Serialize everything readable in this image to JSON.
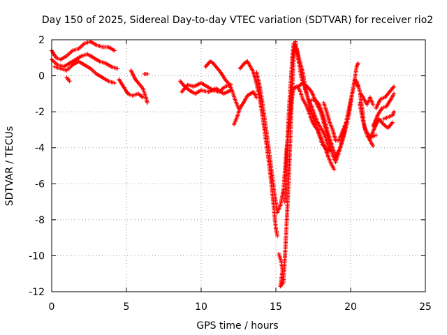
{
  "chart_data": {
    "type": "scatter",
    "title": "Day 150 of 2025, Sidereal Day-to-day VTEC variation (SDTVAR) for receiver rio2",
    "xlabel": "GPS time / hours",
    "ylabel": "SDTVAR / TECUs",
    "xlim": [
      0,
      25
    ],
    "ylim": [
      -12,
      2
    ],
    "x_ticks": [
      0,
      5,
      10,
      15,
      20,
      25
    ],
    "x_tick_labels": [
      "0",
      "5",
      "10",
      "15",
      "20",
      "25"
    ],
    "y_ticks": [
      -12,
      -10,
      -8,
      -6,
      -4,
      -2,
      0,
      2
    ],
    "y_tick_labels": [
      "-12",
      "-10",
      "-8",
      "-6",
      "-4",
      "-2",
      "0",
      "2"
    ],
    "grid": true,
    "marker": "+",
    "color": "#ff0000",
    "series": [
      {
        "segments": [
          [
            [
              0.0,
              1.4
            ],
            [
              0.3,
              1.0
            ],
            [
              0.6,
              0.9
            ],
            [
              1.0,
              1.1
            ],
            [
              1.4,
              1.4
            ],
            [
              1.8,
              1.5
            ],
            [
              2.2,
              1.8
            ],
            [
              2.6,
              1.9
            ],
            [
              3.0,
              1.7
            ],
            [
              3.4,
              1.6
            ],
            [
              3.8,
              1.6
            ],
            [
              4.2,
              1.4
            ]
          ],
          [
            [
              0.0,
              0.9
            ],
            [
              0.4,
              0.6
            ],
            [
              0.8,
              0.5
            ],
            [
              1.2,
              0.7
            ],
            [
              1.6,
              0.9
            ],
            [
              2.0,
              1.1
            ],
            [
              2.4,
              1.2
            ],
            [
              2.8,
              1.0
            ],
            [
              3.2,
              0.8
            ],
            [
              3.6,
              0.7
            ],
            [
              4.0,
              0.5
            ],
            [
              4.4,
              0.4
            ]
          ],
          [
            [
              0.2,
              0.5
            ],
            [
              0.6,
              0.4
            ],
            [
              1.0,
              0.3
            ],
            [
              1.4,
              0.6
            ],
            [
              1.8,
              0.8
            ],
            [
              2.2,
              0.6
            ],
            [
              2.6,
              0.4
            ],
            [
              3.0,
              0.1
            ],
            [
              3.4,
              -0.1
            ],
            [
              3.8,
              -0.3
            ],
            [
              4.2,
              -0.4
            ]
          ],
          [
            [
              1.0,
              -0.1
            ],
            [
              1.2,
              -0.3
            ]
          ],
          [
            [
              4.5,
              -0.2
            ],
            [
              4.8,
              -0.6
            ],
            [
              5.1,
              -1.0
            ],
            [
              5.4,
              -1.1
            ],
            [
              5.8,
              -1.0
            ],
            [
              6.1,
              -1.2
            ]
          ],
          [
            [
              5.3,
              0.3
            ],
            [
              5.6,
              -0.2
            ],
            [
              5.9,
              -0.5
            ],
            [
              6.1,
              -0.7
            ],
            [
              6.3,
              -1.2
            ],
            [
              6.4,
              -1.5
            ]
          ],
          [
            [
              6.2,
              0.1
            ],
            [
              6.4,
              0.1
            ]
          ],
          [
            [
              8.6,
              -0.3
            ],
            [
              8.9,
              -0.6
            ],
            [
              9.2,
              -0.8
            ],
            [
              9.6,
              -1.0
            ],
            [
              10.0,
              -0.8
            ],
            [
              10.5,
              -0.9
            ],
            [
              11.0,
              -0.7
            ],
            [
              11.5,
              -1.0
            ],
            [
              12.0,
              -0.8
            ]
          ],
          [
            [
              8.7,
              -0.9
            ],
            [
              9.1,
              -0.5
            ],
            [
              9.5,
              -0.6
            ],
            [
              10.0,
              -0.4
            ],
            [
              10.4,
              -0.6
            ],
            [
              10.8,
              -0.8
            ],
            [
              11.2,
              -0.9
            ],
            [
              11.6,
              -0.6
            ],
            [
              12.0,
              -0.5
            ]
          ],
          [
            [
              10.3,
              0.5
            ],
            [
              10.6,
              0.8
            ],
            [
              10.8,
              0.7
            ],
            [
              11.1,
              0.4
            ],
            [
              11.3,
              0.2
            ],
            [
              11.6,
              -0.2
            ],
            [
              11.9,
              -0.5
            ],
            [
              12.1,
              -0.9
            ],
            [
              12.3,
              -1.4
            ],
            [
              12.5,
              -1.8
            ]
          ],
          [
            [
              12.2,
              -2.7
            ],
            [
              12.4,
              -2.3
            ],
            [
              12.6,
              -1.8
            ],
            [
              12.9,
              -1.4
            ],
            [
              13.1,
              -1.1
            ],
            [
              13.3,
              -1.0
            ],
            [
              13.5,
              -0.9
            ],
            [
              13.7,
              -1.2
            ]
          ],
          [
            [
              12.6,
              0.4
            ],
            [
              12.9,
              0.7
            ],
            [
              13.1,
              0.8
            ],
            [
              13.3,
              0.5
            ],
            [
              13.5,
              0.2
            ],
            [
              13.7,
              -0.4
            ],
            [
              13.9,
              -1.2
            ],
            [
              14.1,
              -2.2
            ],
            [
              14.3,
              -3.4
            ],
            [
              14.5,
              -4.6
            ],
            [
              14.7,
              -6.0
            ],
            [
              14.9,
              -7.6
            ],
            [
              15.0,
              -8.5
            ],
            [
              15.1,
              -8.9
            ]
          ],
          [
            [
              13.7,
              0.2
            ],
            [
              13.9,
              -0.5
            ],
            [
              14.1,
              -1.5
            ],
            [
              14.3,
              -2.7
            ],
            [
              14.5,
              -3.9
            ],
            [
              14.7,
              -5.2
            ],
            [
              14.9,
              -6.5
            ],
            [
              15.1,
              -7.6
            ],
            [
              15.3,
              -7.2
            ],
            [
              15.5,
              -6.4
            ]
          ],
          [
            [
              15.2,
              -9.9
            ],
            [
              15.35,
              -10.3
            ],
            [
              15.45,
              -10.8
            ],
            [
              15.3,
              -11.7
            ],
            [
              15.5,
              -11.5
            ],
            [
              15.6,
              -10.2
            ],
            [
              15.7,
              -8.5
            ],
            [
              15.8,
              -6.8
            ],
            [
              15.9,
              -5.0
            ],
            [
              16.0,
              -2.6
            ],
            [
              16.1,
              -0.6
            ],
            [
              16.2,
              1.2
            ],
            [
              16.3,
              1.9
            ],
            [
              16.4,
              1.4
            ],
            [
              16.5,
              0.9
            ],
            [
              16.6,
              0.5
            ],
            [
              16.7,
              -0.1
            ],
            [
              16.9,
              -0.6
            ],
            [
              17.1,
              -1.1
            ],
            [
              17.3,
              -1.8
            ],
            [
              17.5,
              -2.4
            ],
            [
              17.7,
              -2.8
            ],
            [
              17.9,
              -3.3
            ],
            [
              18.1,
              -3.8
            ],
            [
              18.3,
              -4.0
            ],
            [
              18.5,
              -4.2
            ]
          ],
          [
            [
              15.6,
              -7.0
            ],
            [
              15.7,
              -5.2
            ],
            [
              15.8,
              -3.1
            ],
            [
              15.9,
              -1.6
            ],
            [
              16.0,
              -0.3
            ],
            [
              16.1,
              1.0
            ],
            [
              16.2,
              1.8
            ],
            [
              16.4,
              1.5
            ],
            [
              16.6,
              0.8
            ],
            [
              16.8,
              0.2
            ],
            [
              17.0,
              -0.8
            ],
            [
              17.2,
              -1.4
            ],
            [
              17.4,
              -1.7
            ],
            [
              17.6,
              -2.2
            ],
            [
              17.8,
              -2.6
            ],
            [
              18.0,
              -2.9
            ],
            [
              18.2,
              -3.2
            ],
            [
              18.4,
              -3.6
            ],
            [
              18.6,
              -4.2
            ]
          ],
          [
            [
              15.5,
              -6.5
            ],
            [
              15.7,
              -4.2
            ],
            [
              15.9,
              -2.7
            ],
            [
              16.0,
              -1.6
            ],
            [
              16.2,
              -0.7
            ],
            [
              16.4,
              -0.6
            ],
            [
              16.6,
              -0.8
            ],
            [
              16.8,
              -1.3
            ],
            [
              17.0,
              -1.6
            ],
            [
              17.2,
              -2.0
            ],
            [
              17.4,
              -2.5
            ],
            [
              17.6,
              -2.8
            ],
            [
              17.8,
              -3.0
            ],
            [
              18.0,
              -3.4
            ],
            [
              18.2,
              -3.8
            ],
            [
              18.5,
              -4.5
            ],
            [
              18.7,
              -4.9
            ],
            [
              18.9,
              -5.2
            ]
          ],
          [
            [
              16.5,
              -0.6
            ],
            [
              16.8,
              -0.4
            ],
            [
              17.1,
              -0.6
            ],
            [
              17.4,
              -0.9
            ],
            [
              17.7,
              -1.5
            ],
            [
              18.0,
              -2.0
            ],
            [
              18.2,
              -2.6
            ],
            [
              18.5,
              -3.5
            ],
            [
              18.8,
              -4.4
            ],
            [
              19.0,
              -4.8
            ],
            [
              19.2,
              -4.3
            ],
            [
              19.4,
              -3.7
            ],
            [
              19.6,
              -3.0
            ],
            [
              19.8,
              -2.2
            ],
            [
              20.0,
              -1.4
            ],
            [
              20.2,
              -0.6
            ],
            [
              20.4,
              0.5
            ],
            [
              20.5,
              0.7
            ]
          ],
          [
            [
              17.3,
              -1.4
            ],
            [
              17.6,
              -1.3
            ],
            [
              17.9,
              -1.6
            ],
            [
              18.2,
              -2.3
            ],
            [
              18.5,
              -3.2
            ],
            [
              18.8,
              -4.0
            ],
            [
              19.0,
              -4.5
            ],
            [
              19.3,
              -4.0
            ],
            [
              19.6,
              -3.2
            ],
            [
              19.9,
              -2.1
            ],
            [
              20.1,
              -1.0
            ],
            [
              20.3,
              -0.2
            ],
            [
              20.5,
              -0.6
            ]
          ],
          [
            [
              18.2,
              -1.5
            ],
            [
              18.4,
              -2.0
            ],
            [
              18.6,
              -2.6
            ],
            [
              18.8,
              -3.0
            ],
            [
              19.0,
              -3.6
            ],
            [
              19.2,
              -3.6
            ],
            [
              19.4,
              -3.2
            ],
            [
              19.7,
              -2.6
            ]
          ],
          [
            [
              20.4,
              -0.3
            ],
            [
              20.6,
              -0.8
            ],
            [
              20.8,
              -2.0
            ],
            [
              20.9,
              -2.8
            ],
            [
              21.1,
              -3.3
            ],
            [
              21.3,
              -3.6
            ],
            [
              21.5,
              -3.9
            ]
          ],
          [
            [
              20.6,
              -1.5
            ],
            [
              20.8,
              -2.4
            ],
            [
              21.0,
              -3.0
            ],
            [
              21.2,
              -3.3
            ],
            [
              21.4,
              -3.4
            ],
            [
              21.7,
              -3.3
            ]
          ],
          [
            [
              20.7,
              -1.0
            ],
            [
              20.9,
              -1.3
            ],
            [
              21.1,
              -1.6
            ],
            [
              21.3,
              -1.2
            ],
            [
              21.5,
              -1.6
            ]
          ],
          [
            [
              21.3,
              -3.5
            ],
            [
              21.6,
              -2.9
            ],
            [
              21.9,
              -2.4
            ],
            [
              22.2,
              -2.7
            ],
            [
              22.5,
              -2.9
            ],
            [
              22.8,
              -2.6
            ]
          ],
          [
            [
              21.5,
              -2.8
            ],
            [
              21.8,
              -2.2
            ],
            [
              22.1,
              -1.8
            ],
            [
              22.4,
              -1.7
            ],
            [
              22.7,
              -1.3
            ],
            [
              22.9,
              -1.0
            ]
          ],
          [
            [
              21.7,
              -1.8
            ],
            [
              22.0,
              -1.3
            ],
            [
              22.3,
              -1.2
            ],
            [
              22.6,
              -0.9
            ],
            [
              22.9,
              -0.6
            ]
          ],
          [
            [
              22.2,
              -2.4
            ],
            [
              22.5,
              -2.3
            ],
            [
              22.8,
              -2.2
            ],
            [
              22.9,
              -2.0
            ]
          ]
        ]
      }
    ]
  }
}
